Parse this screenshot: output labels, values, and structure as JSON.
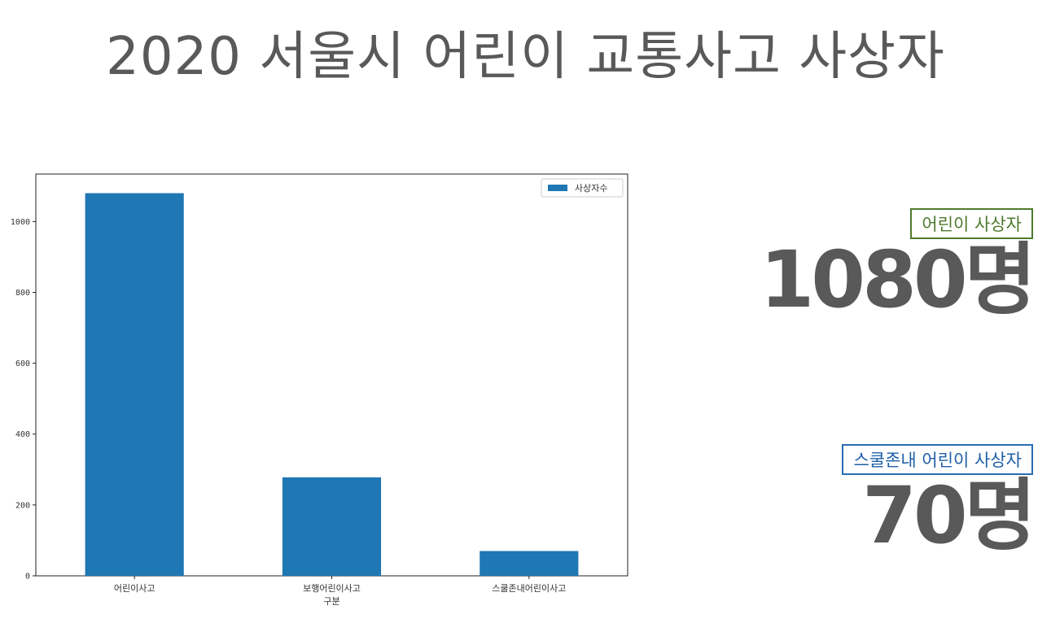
{
  "title": "2020 서울시 어린이 교통사고 사상자",
  "colors": {
    "bar": "#1f77b4",
    "text": "#595959",
    "badge1": "#4e7a2c",
    "badge2": "#2a6db3"
  },
  "chart_data": {
    "type": "bar",
    "categories": [
      "어린이사고",
      "보행어린이사고",
      "스쿨존내어린이사고"
    ],
    "series": [
      {
        "name": "사상자수",
        "values": [
          1080,
          278,
          70
        ]
      }
    ],
    "title": "",
    "xlabel": "구분",
    "ylabel": "",
    "ylim": [
      0,
      1134
    ],
    "yticks": [
      0,
      200,
      400,
      600,
      800,
      1000
    ],
    "legend": "top-right",
    "grid": false
  },
  "stats": [
    {
      "label": "어린이 사상자",
      "value": "1080명"
    },
    {
      "label": "스쿨존내 어린이 사상자",
      "value": "70명"
    }
  ]
}
